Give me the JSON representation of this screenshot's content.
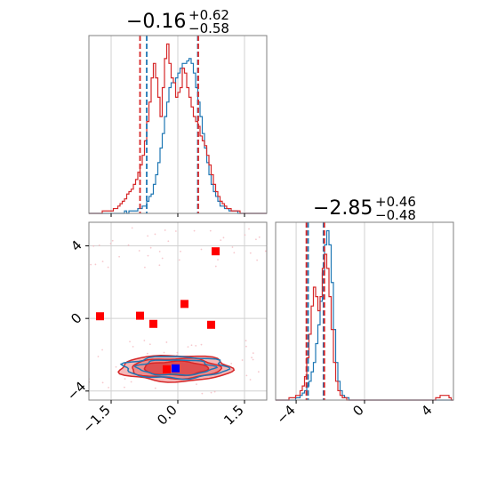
{
  "chart_data": [
    {
      "panel": "marginal-x",
      "type": "histogram",
      "title_value": "−0.16",
      "title_upper": "+0.62",
      "title_lower": "−0.58",
      "xlim": [
        -2.0,
        2.0
      ],
      "x_ticks": [
        -1.5,
        0.0,
        1.5
      ],
      "bin_edges_start": -2.0,
      "bin_width": 0.05,
      "series": [
        {
          "name": "",
          "color": "#1f77b4",
          "quantiles": [
            -0.7,
            0.45
          ],
          "counts": [
            0,
            0,
            0,
            0,
            0,
            0,
            0,
            0,
            0,
            0,
            0,
            0,
            0,
            0,
            0,
            0,
            1,
            0,
            1,
            1,
            1,
            1,
            2,
            2,
            3,
            3,
            5,
            7,
            8,
            12,
            16,
            21,
            27,
            33,
            40,
            46,
            52,
            54,
            54,
            56,
            58,
            60,
            62,
            62,
            63,
            64,
            62,
            58,
            52,
            46,
            40,
            33,
            27,
            21,
            16,
            12,
            9,
            7,
            5,
            3,
            3,
            2,
            2,
            1,
            1,
            1,
            1,
            0,
            0,
            0,
            0,
            0,
            0,
            0,
            0,
            0,
            0,
            0,
            0,
            0
          ]
        },
        {
          "name": "",
          "color": "#d62728",
          "quantiles": [
            -0.85,
            0.46
          ],
          "counts": [
            0,
            0,
            0,
            0,
            0,
            0,
            1,
            1,
            1,
            1,
            1,
            2,
            2,
            3,
            4,
            5,
            6,
            8,
            9,
            10,
            12,
            14,
            17,
            20,
            24,
            30,
            38,
            46,
            56,
            62,
            56,
            48,
            40,
            52,
            64,
            70,
            62,
            56,
            54,
            48,
            50,
            52,
            60,
            58,
            52,
            48,
            44,
            40,
            38,
            36,
            32,
            30,
            28,
            24,
            20,
            16,
            12,
            9,
            7,
            5,
            4,
            3,
            2,
            2,
            1,
            1,
            1,
            1,
            0,
            0,
            0,
            0,
            0,
            0,
            0,
            0,
            0,
            0,
            0,
            0
          ]
        }
      ]
    },
    {
      "panel": "marginal-y",
      "type": "histogram",
      "title_value": "−2.85",
      "title_upper": "+0.46",
      "title_lower": "−0.48",
      "xlim": [
        -5.2,
        5.2
      ],
      "x_ticks": [
        -4,
        0,
        4
      ],
      "bin_edges_start": -5.2,
      "bin_width": 0.13,
      "series": [
        {
          "name": "",
          "color": "#1f77b4",
          "quantiles": [
            -3.3,
            -2.4
          ],
          "counts": [
            0,
            0,
            0,
            0,
            0,
            0,
            0,
            0,
            0,
            1,
            1,
            2,
            3,
            4,
            6,
            8,
            12,
            16,
            24,
            32,
            42,
            54,
            66,
            72,
            66,
            50,
            30,
            16,
            8,
            4,
            2,
            1,
            1,
            0,
            0,
            0,
            0,
            0,
            0,
            0,
            0,
            0,
            0,
            0,
            0,
            0,
            0,
            0,
            0,
            0,
            0,
            0,
            0,
            0,
            0,
            0,
            0,
            0,
            0,
            0,
            0,
            0,
            0,
            0,
            0,
            0,
            0,
            0,
            0,
            0,
            0,
            0,
            0,
            0,
            0,
            0,
            0,
            0,
            0,
            0
          ]
        },
        {
          "name": "",
          "color": "#d62728",
          "quantiles": [
            -3.4,
            -2.35
          ],
          "counts": [
            0,
            0,
            0,
            0,
            0,
            0,
            1,
            1,
            1,
            2,
            2,
            4,
            6,
            10,
            18,
            28,
            40,
            48,
            44,
            38,
            44,
            56,
            62,
            56,
            44,
            30,
            16,
            8,
            4,
            2,
            1,
            1,
            0,
            0,
            0,
            0,
            0,
            0,
            0,
            0,
            0,
            0,
            0,
            0,
            0,
            0,
            0,
            0,
            0,
            0,
            0,
            0,
            0,
            0,
            0,
            0,
            0,
            0,
            0,
            0,
            0,
            0,
            0,
            0,
            0,
            0,
            0,
            0,
            0,
            0,
            0,
            0,
            1,
            1,
            2,
            2,
            2,
            2,
            1,
            0
          ]
        }
      ]
    },
    {
      "panel": "joint",
      "type": "scatter",
      "xlim": [
        -2.0,
        2.0
      ],
      "ylim": [
        -4.5,
        5.3
      ],
      "x_ticks": [
        -1.5,
        0.0,
        1.5
      ],
      "y_ticks": [
        -4,
        0,
        4
      ],
      "contour_center": [
        -0.05,
        -2.75
      ],
      "contour_levels": [
        {
          "rx": 1.25,
          "ry": 0.72,
          "fill": "#f5b8b8",
          "stroke": "#d62728"
        },
        {
          "rx": 1.0,
          "ry": 0.55,
          "fill": "#ee8c8c",
          "stroke": "#d62728"
        },
        {
          "rx": 0.72,
          "ry": 0.38,
          "fill": "#e04f4f",
          "stroke": "#d62728"
        }
      ],
      "blue_contours": [
        {
          "cx": -0.05,
          "cy": -2.7,
          "rx": 1.15,
          "ry": 0.6
        },
        {
          "cx": -0.05,
          "cy": -2.7,
          "rx": 0.85,
          "ry": 0.42
        }
      ],
      "injection_points": [
        {
          "x": -1.75,
          "y": 0.12
        },
        {
          "x": -0.85,
          "y": 0.15
        },
        {
          "x": -0.55,
          "y": -0.3
        },
        {
          "x": 0.15,
          "y": 0.8
        },
        {
          "x": 0.75,
          "y": -0.35
        },
        {
          "x": 0.85,
          "y": 3.7
        },
        {
          "x": -0.25,
          "y": -2.8
        }
      ],
      "true_point": {
        "x": -0.05,
        "y": -2.75,
        "color": "#0000ff"
      },
      "marker_color": "#ff0000"
    }
  ]
}
